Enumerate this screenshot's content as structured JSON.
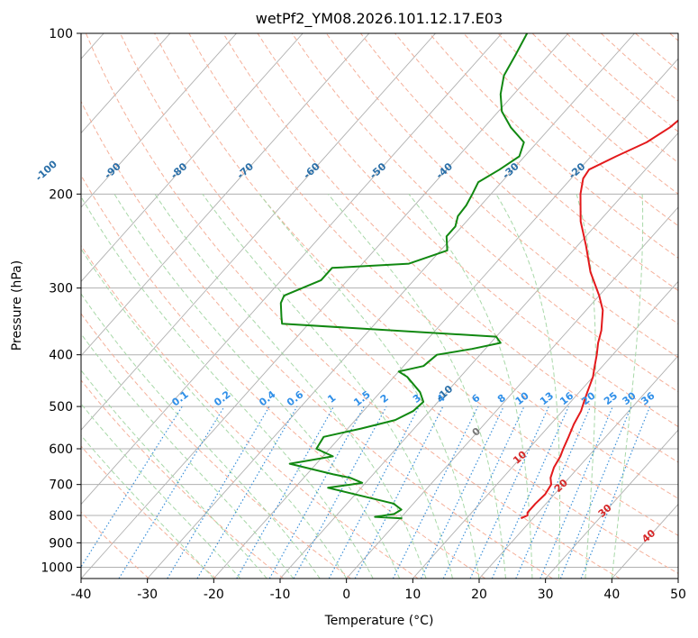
{
  "chart_data": {
    "type": "line",
    "chart_kind": "skew-T log-P",
    "title": "wetPf2_YM08.2026.101.12.17.E03",
    "xlabel": "Temperature (°C)",
    "ylabel": "Pressure (hPa)",
    "xlim": [
      -40,
      50
    ],
    "ylim": [
      1050,
      100
    ],
    "yscale": "log",
    "x_ticks": [
      "-40",
      "-30",
      "-20",
      "-10",
      "0",
      "10",
      "20",
      "30",
      "40",
      "50"
    ],
    "y_ticks": [
      "100",
      "200",
      "300",
      "400",
      "500",
      "600",
      "700",
      "800",
      "900",
      "1000"
    ],
    "isotherm_labels": [
      "-100",
      "-90",
      "-80",
      "-70",
      "-60",
      "-50",
      "-40",
      "-30",
      "-20",
      "-10",
      "0",
      "10",
      "20",
      "30",
      "40"
    ],
    "mixing_ratio_labels": [
      "0.1",
      "0.2",
      "0.4",
      "0.6",
      "1",
      "1.5",
      "2",
      "3",
      "4",
      "6",
      "8",
      "10",
      "13",
      "16",
      "20",
      "25",
      "30",
      "36"
    ],
    "colors": {
      "temperature": "#e31a1c",
      "dewpoint": "#118811",
      "isotherm": "#b0b0b0",
      "dry_adiabat": "#f5b09a",
      "moist_adiabat": "#a8d8a8",
      "mixing_ratio": "#3a8fd8",
      "isotherm_label": "#2a6fa8",
      "mixing_label": "#2f8fe8"
    },
    "grid": true,
    "series": [
      {
        "role": "temperature",
        "points": [
          [
            18.2,
            810
          ],
          [
            18.8,
            800
          ],
          [
            18.4,
            790
          ],
          [
            18.4,
            760
          ],
          [
            18.6,
            730
          ],
          [
            18.2,
            700
          ],
          [
            17.2,
            680
          ],
          [
            16.3,
            650
          ],
          [
            15.8,
            620
          ],
          [
            15.2,
            600
          ],
          [
            14.4,
            570
          ],
          [
            13.5,
            540
          ],
          [
            12.8,
            510
          ],
          [
            12.0,
            490
          ],
          [
            11.2,
            470
          ],
          [
            10.0,
            440
          ],
          [
            8.8,
            420
          ],
          [
            7.6,
            400
          ],
          [
            6.2,
            380
          ],
          [
            5.0,
            360
          ],
          [
            2.5,
            330
          ],
          [
            0.0,
            310
          ],
          [
            -4.5,
            280
          ],
          [
            -8.7,
            250
          ],
          [
            -12.8,
            225
          ],
          [
            -16.5,
            200
          ],
          [
            -18.2,
            187
          ],
          [
            -18.5,
            180
          ],
          [
            -16.2,
            170
          ],
          [
            -13.5,
            160
          ],
          [
            -12.0,
            150
          ],
          [
            -11.3,
            140
          ],
          [
            -11.8,
            130
          ],
          [
            -12.4,
            120
          ],
          [
            -12.8,
            110
          ],
          [
            -12.6,
            100
          ]
        ]
      },
      {
        "role": "dewpoint",
        "points": [
          [
            0.3,
            810
          ],
          [
            -4.0,
            805
          ],
          [
            -1.5,
            795
          ],
          [
            -1.0,
            780
          ],
          [
            -3.0,
            760
          ],
          [
            -15.0,
            710
          ],
          [
            -12.0,
            700
          ],
          [
            -10.5,
            695
          ],
          [
            -13.0,
            680
          ],
          [
            -16.0,
            670
          ],
          [
            -24.0,
            640
          ],
          [
            -18.5,
            620
          ],
          [
            -22.0,
            600
          ],
          [
            -22.5,
            570
          ],
          [
            -18.0,
            550
          ],
          [
            -14.0,
            530
          ],
          [
            -12.5,
            510
          ],
          [
            -12.2,
            490
          ],
          [
            -14.0,
            470
          ],
          [
            -18.0,
            440
          ],
          [
            -20.0,
            430
          ],
          [
            -17.0,
            420
          ],
          [
            -16.5,
            400
          ],
          [
            -12.0,
            390
          ],
          [
            -8.5,
            380
          ],
          [
            -10.0,
            370
          ],
          [
            -44.0,
            350
          ],
          [
            -45.0,
            340
          ],
          [
            -47.0,
            320
          ],
          [
            -47.5,
            310
          ],
          [
            -44.0,
            290
          ],
          [
            -44.0,
            275
          ],
          [
            -33.0,
            270
          ],
          [
            -29.0,
            255
          ],
          [
            -31.0,
            240
          ],
          [
            -31.0,
            230
          ],
          [
            -32.0,
            220
          ],
          [
            -32.2,
            210
          ],
          [
            -32.8,
            200
          ],
          [
            -33.5,
            190
          ],
          [
            -32.0,
            180
          ],
          [
            -30.8,
            170
          ],
          [
            -32.0,
            160
          ],
          [
            -36.0,
            150
          ],
          [
            -39.5,
            140
          ],
          [
            -42.0,
            130
          ],
          [
            -44.0,
            120
          ],
          [
            -45.0,
            110
          ],
          [
            -46.2,
            100
          ]
        ]
      }
    ]
  }
}
